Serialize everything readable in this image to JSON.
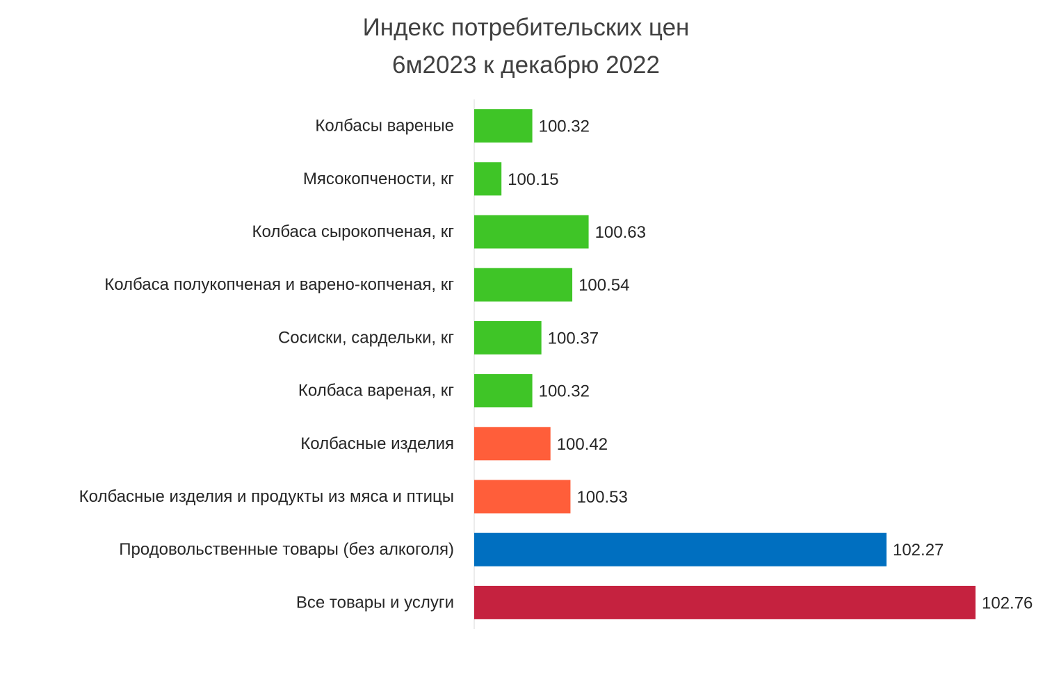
{
  "chart_data": {
    "type": "bar",
    "orientation": "horizontal",
    "title": [
      "Индекс потребительских цен",
      "6м2023 к декабрю 2022"
    ],
    "categories": [
      "Колбасы вареные",
      "Мясокопчености, кг",
      "Колбаса сырокопченая, кг",
      "Колбаса полукопченая и варено-копченая, кг",
      "Сосиски, сардельки, кг",
      "Колбаса вареная, кг",
      "Колбасные изделия",
      "Колбасные изделия и продукты из мяса и птицы",
      "Продовольственные товары (без алкоголя)",
      "Все товары и услуги"
    ],
    "values": [
      100.32,
      100.15,
      100.63,
      100.54,
      100.37,
      100.32,
      100.42,
      100.53,
      102.27,
      102.76
    ],
    "value_labels": [
      "100.32",
      "100.15",
      "100.63",
      "100.54",
      "100.37",
      "100.32",
      "100.42",
      "100.53",
      "102.27",
      "102.76"
    ],
    "bar_colors": [
      "#3fc527",
      "#3fc527",
      "#3fc527",
      "#3fc527",
      "#3fc527",
      "#3fc527",
      "#ff5e3a",
      "#ff5e3a",
      "#006fc0",
      "#c5223f"
    ],
    "xlim": [
      100,
      102.76
    ],
    "grid": false,
    "legend": "none"
  }
}
